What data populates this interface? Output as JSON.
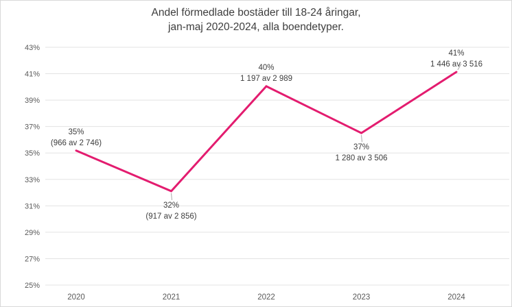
{
  "figure": {
    "title_line1": "Andel förmedlade bostäder till 18-24 åringar,",
    "title_line2": "jan-maj 2020-2024, alla boendetyper."
  },
  "chart_data": {
    "type": "line",
    "title": "Andel förmedlade bostäder till 18-24 åringar, jan-maj 2020-2024, alla boendetyper.",
    "categories": [
      "2020",
      "2021",
      "2022",
      "2023",
      "2024"
    ],
    "series": [
      {
        "name": "Andel förmedlade bostäder till 18-24 åringar",
        "values": [
          35.2,
          32.1,
          40.0,
          36.5,
          41.1
        ]
      }
    ],
    "points": [
      {
        "category": "2020",
        "value_pct": 35.18,
        "percent_label": "35%",
        "detail_label": "(966 av 2 746)",
        "numerator": 966,
        "denominator": 2746,
        "label_position": "above",
        "leader": false
      },
      {
        "category": "2021",
        "value_pct": 32.11,
        "percent_label": "32%",
        "detail_label": "(917 av 2 856)",
        "numerator": 917,
        "denominator": 2856,
        "label_position": "below",
        "leader": true
      },
      {
        "category": "2022",
        "value_pct": 40.05,
        "percent_label": "40%",
        "detail_label": "1 197 av 2 989",
        "numerator": 1197,
        "denominator": 2989,
        "label_position": "above",
        "leader": false
      },
      {
        "category": "2023",
        "value_pct": 36.51,
        "percent_label": "37%",
        "detail_label": "1 280 av 3 506",
        "numerator": 1280,
        "denominator": 3506,
        "label_position": "below",
        "leader": true
      },
      {
        "category": "2024",
        "value_pct": 41.13,
        "percent_label": "41%",
        "detail_label": "1 446 av 3 516",
        "numerator": 1446,
        "denominator": 3516,
        "label_position": "above",
        "leader": true
      }
    ],
    "y_axis": {
      "min": 25,
      "max": 43,
      "step": 2,
      "unit": "%",
      "tick_labels": [
        "25%",
        "27%",
        "29%",
        "31%",
        "33%",
        "35%",
        "37%",
        "39%",
        "41%",
        "43%"
      ]
    },
    "x_axis": {
      "tick_labels": [
        "2020",
        "2021",
        "2022",
        "2023",
        "2024"
      ]
    },
    "grid": true,
    "legend_position": "none",
    "colors": {
      "line": "#E31C6F",
      "grid": "#e3e3e3",
      "tick_text": "#595959",
      "label_text": "#3d3d3d",
      "leader": "#a8a8a8"
    }
  }
}
